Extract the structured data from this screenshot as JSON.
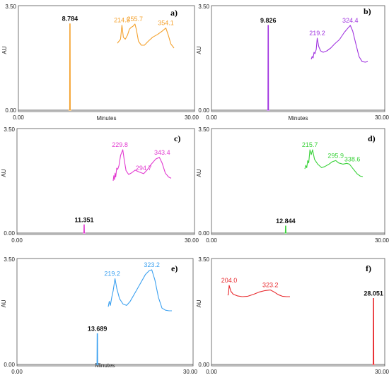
{
  "chart_data": [
    {
      "type": "line",
      "panel_label": "a)",
      "xlabel": "Minutes",
      "ylabel": "AU",
      "xlim": [
        0,
        30
      ],
      "ylim": [
        0,
        3.5
      ],
      "x_ticks": [
        "0.00",
        "30.00"
      ],
      "y_ticks": [
        "0.00",
        "3.50"
      ],
      "color": "#f4a12c",
      "peak": {
        "rt": 8.784,
        "label": "8.784",
        "height": 2.9
      },
      "uv_spectrum": {
        "x_range": [
          200,
          380
        ],
        "values": [
          [
            200,
            3.0
          ],
          [
            205,
            3.05
          ],
          [
            210,
            3.1
          ],
          [
            214.5,
            3.45
          ],
          [
            219,
            3.15
          ],
          [
            225,
            3.1
          ],
          [
            232,
            3.2
          ],
          [
            238,
            3.35
          ],
          [
            244,
            3.4
          ],
          [
            249,
            3.42
          ],
          [
            255.7,
            3.48
          ],
          [
            260,
            3.35
          ],
          [
            267,
            3.05
          ],
          [
            276,
            2.95
          ],
          [
            286,
            2.95
          ],
          [
            298,
            3.05
          ],
          [
            312,
            3.15
          ],
          [
            328,
            3.22
          ],
          [
            342,
            3.3
          ],
          [
            354.1,
            3.38
          ],
          [
            362,
            3.2
          ],
          [
            370,
            2.98
          ],
          [
            380,
            2.88
          ]
        ],
        "labels": [
          "214.5",
          "255.7",
          "354.1"
        ]
      }
    },
    {
      "type": "line",
      "panel_label": "b)",
      "xlabel": "Minutes",
      "ylabel": "AU",
      "xlim": [
        0,
        30
      ],
      "ylim": [
        0,
        3.5
      ],
      "x_ticks": [
        "0.00",
        "30.00"
      ],
      "y_ticks": [
        "0.00",
        "3.50"
      ],
      "color": "#a134e0",
      "peak": {
        "rt": 9.826,
        "label": "9.826",
        "height": 2.85
      },
      "uv_spectrum": {
        "x_range": [
          200,
          380
        ],
        "values": [
          [
            200,
            2.5
          ],
          [
            203,
            2.6
          ],
          [
            206,
            2.55
          ],
          [
            209,
            2.75
          ],
          [
            212,
            2.7
          ],
          [
            216,
            2.85
          ],
          [
            219.2,
            3.25
          ],
          [
            224,
            2.95
          ],
          [
            230,
            2.8
          ],
          [
            238,
            2.75
          ],
          [
            250,
            2.8
          ],
          [
            262,
            2.9
          ],
          [
            275,
            3.05
          ],
          [
            290,
            3.2
          ],
          [
            305,
            3.45
          ],
          [
            318,
            3.62
          ],
          [
            324.4,
            3.7
          ],
          [
            332,
            3.5
          ],
          [
            342,
            3.05
          ],
          [
            352,
            2.6
          ],
          [
            362,
            2.42
          ],
          [
            372,
            2.4
          ],
          [
            380,
            2.42
          ]
        ],
        "labels": [
          "219.2",
          "324.4"
        ]
      }
    },
    {
      "type": "line",
      "panel_label": "c)",
      "xlabel": "",
      "ylabel": "AU",
      "xlim": [
        0,
        30
      ],
      "ylim": [
        0,
        3.5
      ],
      "x_ticks": [
        "0.00",
        "30.00"
      ],
      "y_ticks": [
        "0.00",
        "3.50"
      ],
      "color": "#e23ad0",
      "peak": {
        "rt": 11.351,
        "label": "11.351",
        "height": 0.32
      },
      "uv_spectrum": {
        "x_range": [
          200,
          380
        ],
        "values": [
          [
            200,
            1.9
          ],
          [
            202,
            2.1
          ],
          [
            204,
            1.95
          ],
          [
            206,
            2.2
          ],
          [
            208,
            2.05
          ],
          [
            211,
            2.4
          ],
          [
            214,
            2.35
          ],
          [
            218,
            2.5
          ],
          [
            223,
            2.9
          ],
          [
            229.8,
            3.12
          ],
          [
            234,
            2.75
          ],
          [
            240,
            2.3
          ],
          [
            248,
            2.15
          ],
          [
            258,
            2.22
          ],
          [
            268,
            2.32
          ],
          [
            280,
            2.25
          ],
          [
            294.7,
            2.18
          ],
          [
            305,
            2.32
          ],
          [
            318,
            2.55
          ],
          [
            332,
            2.75
          ],
          [
            343.4,
            2.82
          ],
          [
            352,
            2.6
          ],
          [
            362,
            2.2
          ],
          [
            372,
            2.05
          ],
          [
            380,
            2.0
          ]
        ],
        "labels": [
          "229.8",
          "294.7",
          "343.4"
        ]
      }
    },
    {
      "type": "line",
      "panel_label": "d)",
      "xlabel": "",
      "ylabel": "AU",
      "xlim": [
        0,
        30
      ],
      "ylim": [
        0,
        3.5
      ],
      "x_ticks": [
        "0.00",
        "30.00"
      ],
      "y_ticks": [
        "0.00",
        "3.50"
      ],
      "color": "#3ad23a",
      "peak": {
        "rt": 12.844,
        "label": "12.844",
        "height": 0.28
      },
      "uv_spectrum": {
        "x_range": [
          200,
          380
        ],
        "values": [
          [
            200,
            2.15
          ],
          [
            203,
            2.3
          ],
          [
            206,
            2.2
          ],
          [
            209,
            2.5
          ],
          [
            212,
            2.4
          ],
          [
            215.7,
            2.95
          ],
          [
            220,
            2.75
          ],
          [
            224,
            2.95
          ],
          [
            230,
            2.55
          ],
          [
            240,
            2.35
          ],
          [
            252,
            2.2
          ],
          [
            262,
            2.25
          ],
          [
            275,
            2.35
          ],
          [
            285,
            2.45
          ],
          [
            295.9,
            2.5
          ],
          [
            305,
            2.4
          ],
          [
            318,
            2.35
          ],
          [
            330,
            2.38
          ],
          [
            338.6,
            2.35
          ],
          [
            350,
            2.15
          ],
          [
            362,
            1.95
          ],
          [
            372,
            1.85
          ],
          [
            380,
            1.83
          ]
        ],
        "labels": [
          "215.7",
          "295.9",
          "338.6"
        ]
      }
    },
    {
      "type": "line",
      "panel_label": "e)",
      "xlabel": "Minutes",
      "ylabel": "AU",
      "xlim": [
        0,
        30
      ],
      "ylim": [
        0,
        3.5
      ],
      "x_ticks": [
        "0.00",
        "30.00"
      ],
      "y_ticks": [
        "0.00",
        "3.50"
      ],
      "color": "#3aa0f0",
      "peak": {
        "rt": 13.689,
        "label": "13.689",
        "height": 1.05
      },
      "uv_spectrum": {
        "x_range": [
          200,
          380
        ],
        "values": [
          [
            200,
            2.0
          ],
          [
            203,
            2.2
          ],
          [
            206,
            2.05
          ],
          [
            210,
            2.35
          ],
          [
            214,
            2.6
          ],
          [
            219.2,
            3.05
          ],
          [
            224,
            2.7
          ],
          [
            232,
            2.3
          ],
          [
            242,
            2.1
          ],
          [
            252,
            2.05
          ],
          [
            262,
            2.2
          ],
          [
            275,
            2.5
          ],
          [
            290,
            2.85
          ],
          [
            305,
            3.2
          ],
          [
            316,
            3.35
          ],
          [
            323.2,
            3.38
          ],
          [
            332,
            3.0
          ],
          [
            342,
            2.35
          ],
          [
            352,
            1.95
          ],
          [
            362,
            1.87
          ],
          [
            372,
            1.85
          ],
          [
            380,
            1.85
          ]
        ],
        "labels": [
          "219.2",
          "323.2"
        ]
      }
    },
    {
      "type": "line",
      "panel_label": "f)",
      "xlabel": "",
      "ylabel": "AU",
      "xlim": [
        0,
        30
      ],
      "ylim": [
        0,
        3.5
      ],
      "x_ticks": [
        "0.00",
        "30.00"
      ],
      "y_ticks": [
        "0.00",
        "3.50"
      ],
      "color": "#e8292d",
      "peak": {
        "rt": 28.051,
        "label": "28.051",
        "height": 2.2
      },
      "uv_spectrum": {
        "x_range": [
          200,
          380
        ],
        "values": [
          [
            200,
            2.45
          ],
          [
            202,
            2.5
          ],
          [
            204.0,
            2.95
          ],
          [
            209,
            2.65
          ],
          [
            216,
            2.5
          ],
          [
            228,
            2.42
          ],
          [
            242,
            2.38
          ],
          [
            258,
            2.4
          ],
          [
            275,
            2.5
          ],
          [
            292,
            2.62
          ],
          [
            306,
            2.68
          ],
          [
            323.2,
            2.72
          ],
          [
            334,
            2.62
          ],
          [
            346,
            2.48
          ],
          [
            358,
            2.4
          ],
          [
            370,
            2.38
          ],
          [
            380,
            2.38
          ]
        ],
        "labels": [
          "204.0",
          "323.2"
        ]
      }
    }
  ]
}
